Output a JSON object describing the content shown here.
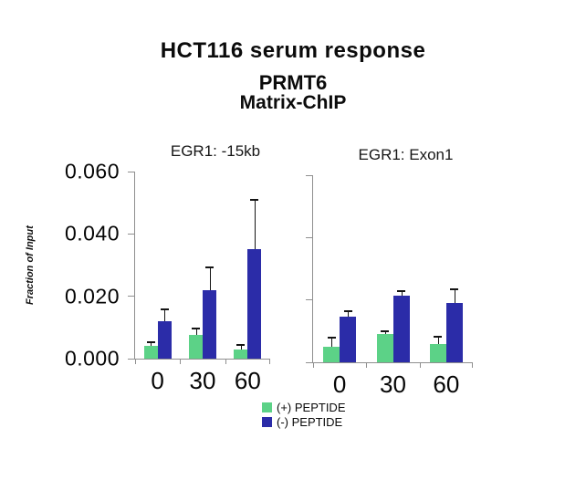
{
  "titles": {
    "line1": "HCT116 serum response",
    "line2": "PRMT6",
    "line3": "Matrix-ChIP"
  },
  "colors": {
    "positive_peptide": "#5CD287",
    "negative_peptide": "#2B2CA8",
    "axis": "#8f8f8f",
    "error_bar": "#141414",
    "background": "#ffffff"
  },
  "legend": [
    {
      "label": "(+) PEPTIDE",
      "color": "#5CD287"
    },
    {
      "label": "(-) PEPTIDE",
      "color": "#2B2CA8"
    }
  ],
  "chart_data": [
    {
      "type": "bar",
      "title": "EGR1: -15kb",
      "categories": [
        "0",
        "30",
        "60"
      ],
      "series": [
        {
          "name": "(+) PEPTIDE",
          "color": "#5CD287",
          "values": [
            0.004,
            0.0075,
            0.003
          ],
          "errors": [
            0.001,
            0.002,
            0.001
          ]
        },
        {
          "name": "(-) PEPTIDE",
          "color": "#2B2CA8",
          "values": [
            0.012,
            0.022,
            0.035
          ],
          "errors": [
            0.0035,
            0.007,
            0.0155
          ]
        }
      ],
      "xlabel": "",
      "ylabel": "Fraction of Input",
      "ylim": [
        0,
        0.06
      ],
      "yticks": [
        "0.000",
        "0.020",
        "0.040",
        "0.060"
      ],
      "grid": false,
      "legend_position": "bottom"
    },
    {
      "type": "bar",
      "title": "EGR1: Exon1",
      "categories": [
        "0",
        "30",
        "60"
      ],
      "series": [
        {
          "name": "(+) PEPTIDE",
          "color": "#5CD287",
          "values": [
            0.005,
            0.009,
            0.006
          ],
          "errors": [
            0.0025,
            0.0007,
            0.002
          ]
        },
        {
          "name": "(-) PEPTIDE",
          "color": "#2B2CA8",
          "values": [
            0.0145,
            0.0215,
            0.019
          ],
          "errors": [
            0.0015,
            0.001,
            0.004
          ]
        }
      ],
      "xlabel": "",
      "ylabel": "Fraction of Input",
      "ylim": [
        0,
        0.06
      ],
      "yticks": [
        "0.000",
        "0.020",
        "0.040",
        "0.060"
      ],
      "grid": false,
      "legend_position": "bottom"
    }
  ]
}
